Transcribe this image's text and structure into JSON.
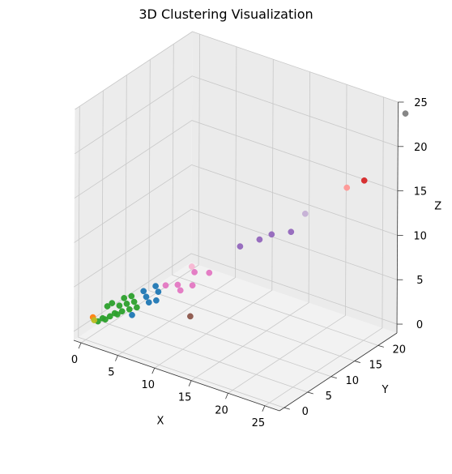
{
  "chart_data": {
    "type": "scatter",
    "projection": "3d",
    "title": "3D Clustering Visualization",
    "xlabel": "X",
    "ylabel": "Y",
    "zlabel": "Z",
    "xlim": [
      -1,
      27
    ],
    "ylim": [
      -1,
      24
    ],
    "zlim": [
      -1,
      25
    ],
    "xticks": [
      "0",
      "5",
      "10",
      "15",
      "20",
      "25"
    ],
    "yticks": [
      "0",
      "5",
      "10",
      "15",
      "20"
    ],
    "zticks": [
      "0",
      "5",
      "10",
      "15",
      "20",
      "25"
    ],
    "grid": true,
    "legend": "none",
    "points": [
      {
        "x": 0.5,
        "y": 1,
        "z": 1,
        "color": "#bcbd22"
      },
      {
        "x": 0,
        "y": 1.5,
        "z": 1,
        "color": "#ff7f0e"
      },
      {
        "x": 1,
        "y": 1,
        "z": 1,
        "color": "#2ca02c"
      },
      {
        "x": 2,
        "y": 1,
        "z": 1.5,
        "color": "#2ca02c"
      },
      {
        "x": 1,
        "y": 2,
        "z": 1,
        "color": "#2ca02c"
      },
      {
        "x": 2,
        "y": 2,
        "z": 1.5,
        "color": "#2ca02c"
      },
      {
        "x": 3,
        "y": 2,
        "z": 2,
        "color": "#2ca02c"
      },
      {
        "x": 2,
        "y": 3,
        "z": 1.5,
        "color": "#2ca02c"
      },
      {
        "x": 3,
        "y": 3,
        "z": 2,
        "color": "#2ca02c"
      },
      {
        "x": 1,
        "y": 3,
        "z": 2,
        "color": "#2ca02c"
      },
      {
        "x": 2,
        "y": 4,
        "z": 2,
        "color": "#2ca02c"
      },
      {
        "x": 4,
        "y": 3,
        "z": 2.5,
        "color": "#2ca02c"
      },
      {
        "x": 3,
        "y": 4,
        "z": 2.5,
        "color": "#2ca02c"
      },
      {
        "x": 1,
        "y": 4,
        "z": 2,
        "color": "#2ca02c"
      },
      {
        "x": 4,
        "y": 4,
        "z": 3,
        "color": "#2ca02c"
      },
      {
        "x": 2,
        "y": 5,
        "z": 2.5,
        "color": "#2ca02c"
      },
      {
        "x": 3,
        "y": 5,
        "z": 3,
        "color": "#2ca02c"
      },
      {
        "x": 5,
        "y": 3,
        "z": 3,
        "color": "#2ca02c"
      },
      {
        "x": 5,
        "y": 2,
        "z": 2.5,
        "color": "#1f77b4"
      },
      {
        "x": 6,
        "y": 4,
        "z": 3.5,
        "color": "#1f77b4"
      },
      {
        "x": 5,
        "y": 5,
        "z": 3.5,
        "color": "#1f77b4"
      },
      {
        "x": 7,
        "y": 4,
        "z": 4,
        "color": "#1f77b4"
      },
      {
        "x": 6,
        "y": 6,
        "z": 4,
        "color": "#1f77b4"
      },
      {
        "x": 4,
        "y": 6,
        "z": 3.5,
        "color": "#1f77b4"
      },
      {
        "x": 5,
        "y": 7,
        "z": 4,
        "color": "#1f77b4"
      },
      {
        "x": 7,
        "y": 6,
        "z": 5,
        "color": "#e377c2"
      },
      {
        "x": 8,
        "y": 7,
        "z": 5,
        "color": "#e377c2"
      },
      {
        "x": 9,
        "y": 6,
        "z": 5,
        "color": "#e377c2"
      },
      {
        "x": 10,
        "y": 7,
        "z": 5.5,
        "color": "#e377c2"
      },
      {
        "x": 9,
        "y": 9,
        "z": 6,
        "color": "#e377c2"
      },
      {
        "x": 11,
        "y": 9,
        "z": 6.5,
        "color": "#e377c2"
      },
      {
        "x": 8,
        "y": 10,
        "z": 6,
        "color": "#f7b6d2"
      },
      {
        "x": 11,
        "y": 5,
        "z": 3,
        "color": "#8c564b"
      },
      {
        "x": 12,
        "y": 14,
        "z": 8,
        "color": "#9467bd"
      },
      {
        "x": 14,
        "y": 15,
        "z": 9,
        "color": "#9467bd"
      },
      {
        "x": 15,
        "y": 16,
        "z": 9.5,
        "color": "#9467bd"
      },
      {
        "x": 17,
        "y": 17,
        "z": 10,
        "color": "#9467bd"
      },
      {
        "x": 17,
        "y": 20,
        "z": 11,
        "color": "#c5b0d5"
      },
      {
        "x": 22,
        "y": 21,
        "z": 15,
        "color": "#ff9896"
      },
      {
        "x": 25,
        "y": 20,
        "z": 17,
        "color": "#d62728"
      },
      {
        "x": 28,
        "y": 24,
        "z": 24,
        "color": "#7f7f7f"
      }
    ]
  }
}
